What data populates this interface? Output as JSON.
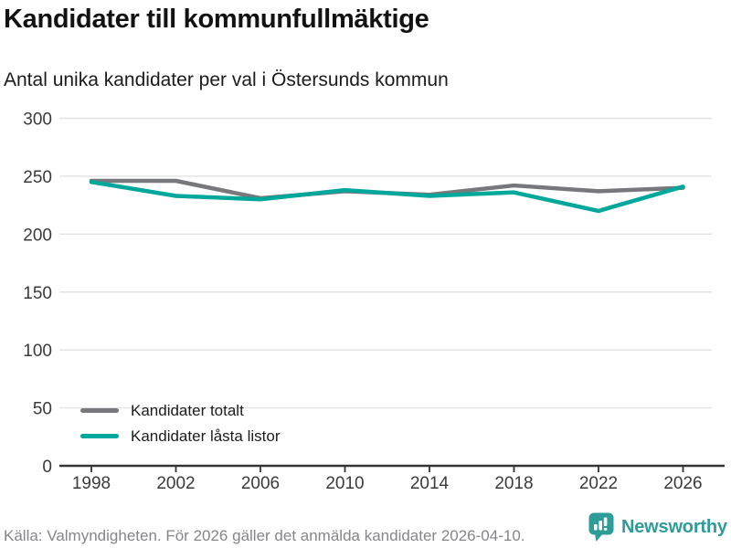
{
  "header": {
    "title": "Kandidater till kommunfullmäktige",
    "subtitle": "Antal unika kandidater per val i Östersunds kommun"
  },
  "chart_data": {
    "type": "line",
    "categories": [
      "1998",
      "2002",
      "2006",
      "2010",
      "2014",
      "2018",
      "2022",
      "2026"
    ],
    "series": [
      {
        "name": "Kandidater totalt",
        "color": "#77787b",
        "values": [
          246,
          246,
          231,
          237,
          234,
          242,
          237,
          240
        ]
      },
      {
        "name": "Kandidater låsta listor",
        "color": "#00a79b",
        "values": [
          245,
          233,
          230,
          238,
          233,
          236,
          220,
          241
        ]
      }
    ],
    "title": "Kandidater till kommunfullmäktige",
    "subtitle": "Antal unika kandidater per val i Östersunds kommun",
    "xlabel": "",
    "ylabel": "",
    "ylim": [
      0,
      300
    ],
    "ytick_step": 50,
    "grid": "horizontal",
    "legend_position": "inside-bottom-left"
  },
  "footer": {
    "source": "Källa: Valmyndigheten. För 2026 gäller det anmälda kandidater 2026-04-10.",
    "brand": "Newsworthy",
    "brand_color": "#2e9c98",
    "brand_icon": "bar-chart-speech-bubble-icon"
  }
}
